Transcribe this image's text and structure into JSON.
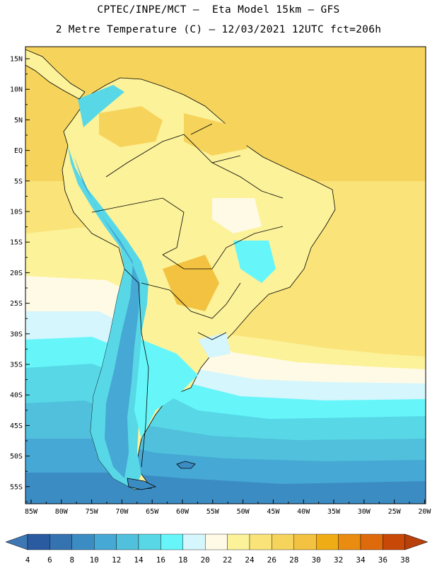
{
  "header": {
    "line1": "CPTEC/INPE/MCT –  Eta Model 15km – GFS",
    "line2": "2 Metre Temperature (C) – 12/03/2021 12UTC fct=206h"
  },
  "axes": {
    "lat_labels": [
      "15N",
      "10N",
      "5N",
      "EQ",
      "5S",
      "10S",
      "15S",
      "20S",
      "25S",
      "30S",
      "35S",
      "40S",
      "45S",
      "50S",
      "55S"
    ],
    "lon_labels": [
      "85W",
      "80W",
      "75W",
      "70W",
      "65W",
      "60W",
      "55W",
      "50W",
      "45W",
      "40W",
      "35W",
      "30W",
      "25W",
      "20W"
    ]
  },
  "colorbar": {
    "labels": [
      "4",
      "6",
      "8",
      "10",
      "12",
      "14",
      "16",
      "18",
      "20",
      "22",
      "24",
      "26",
      "28",
      "30",
      "32",
      "34",
      "36",
      "38"
    ],
    "colors": [
      "#2a5aa0",
      "#3472b0",
      "#3c8cc4",
      "#46a8d4",
      "#50c0dc",
      "#58d8e6",
      "#66f6fa",
      "#d4f6fc",
      "#fffae6",
      "#fcf29a",
      "#fae47a",
      "#f6d45c",
      "#f2c240",
      "#f0ac14",
      "#ea8c10",
      "#de6a0c",
      "#c84808",
      "#b03206"
    ],
    "low_color": "#3e78b4",
    "high_color": "#b8400a"
  }
}
